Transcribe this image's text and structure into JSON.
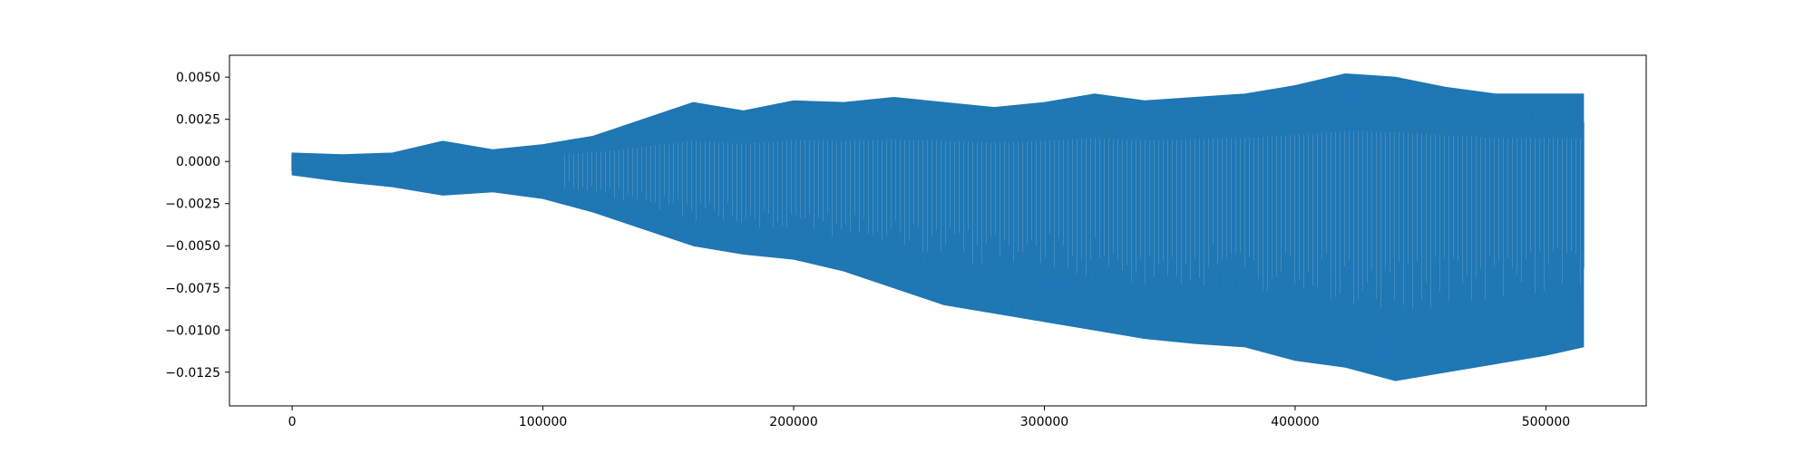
{
  "chart_data": {
    "type": "line",
    "title": "",
    "xlabel": "",
    "ylabel": "",
    "xlim": [
      -25000,
      540000
    ],
    "ylim": [
      -0.0145,
      0.0063
    ],
    "x_ticks": [
      0,
      100000,
      200000,
      300000,
      400000,
      500000
    ],
    "x_tick_labels": [
      "0",
      "100000",
      "200000",
      "300000",
      "400000",
      "500000"
    ],
    "y_ticks": [
      0.005,
      0.0025,
      0.0,
      -0.0025,
      -0.005,
      -0.0075,
      -0.01,
      -0.0125
    ],
    "y_tick_labels": [
      "0.0050",
      "0.0025",
      "0.0000",
      "−0.0025",
      "−0.0050",
      "−0.0075",
      "−0.0100",
      "−0.0125"
    ],
    "grid": false,
    "legend": "none",
    "series_color": "#1f77b4",
    "series": [
      {
        "x": [
          0,
          20000,
          40000,
          60000,
          80000,
          100000,
          120000,
          140000,
          160000,
          180000,
          200000,
          220000,
          240000,
          260000,
          280000,
          300000,
          320000,
          340000,
          360000,
          380000,
          400000,
          420000,
          440000,
          460000,
          480000,
          500000,
          515000
        ],
        "upper": [
          0.0005,
          0.0004,
          0.0005,
          0.0012,
          0.0007,
          0.001,
          0.0015,
          0.0025,
          0.0035,
          0.003,
          0.0036,
          0.0035,
          0.0038,
          0.0035,
          0.0032,
          0.0035,
          0.004,
          0.0036,
          0.0038,
          0.004,
          0.0045,
          0.0052,
          0.005,
          0.0044,
          0.004,
          0.004,
          0.004
        ],
        "lower": [
          -0.0008,
          -0.0012,
          -0.0015,
          -0.002,
          -0.0018,
          -0.0022,
          -0.003,
          -0.004,
          -0.005,
          -0.0055,
          -0.0058,
          -0.0065,
          -0.0075,
          -0.0085,
          -0.009,
          -0.0095,
          -0.01,
          -0.0105,
          -0.0108,
          -0.011,
          -0.0118,
          -0.0122,
          -0.013,
          -0.0125,
          -0.012,
          -0.0115,
          -0.011
        ]
      }
    ]
  }
}
